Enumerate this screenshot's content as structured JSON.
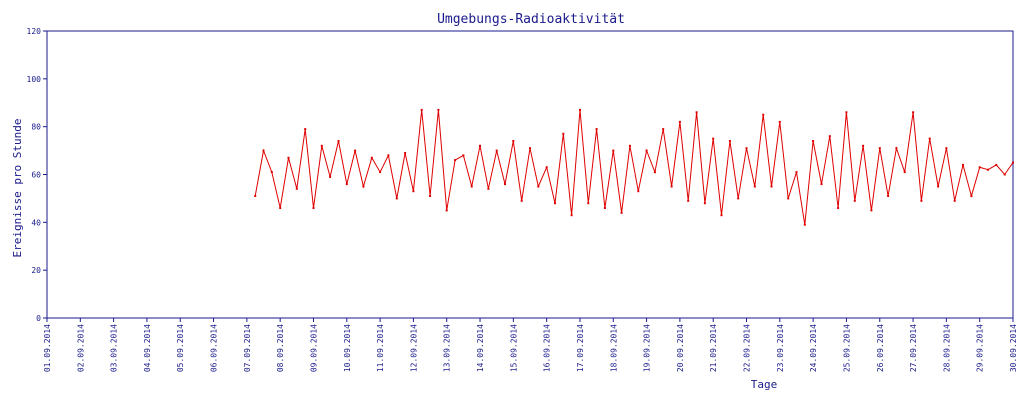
{
  "chart_data": {
    "type": "line",
    "title": "Umgebungs-Radioaktivität",
    "xlabel": "Tage",
    "ylabel": "Ereignisse pro Stunde",
    "ylim": [
      0,
      120
    ],
    "yticks": [
      0,
      20,
      40,
      60,
      80,
      100,
      120
    ],
    "xlim": [
      "01.09.2014",
      "30.09.2014"
    ],
    "x_tick_labels": [
      "01.09.2014",
      "02.09.2014",
      "03.09.2014",
      "04.09.2014",
      "05.09.2014",
      "06.09.2014",
      "07.09.2014",
      "08.09.2014",
      "09.09.2014",
      "10.09.2014",
      "11.09.2014",
      "12.09.2014",
      "13.09.2014",
      "14.09.2014",
      "15.09.2014",
      "16.09.2014",
      "17.09.2014",
      "18.09.2014",
      "19.09.2014",
      "20.09.2014",
      "21.09.2014",
      "22.09.2014",
      "23.09.2014",
      "24.09.2014",
      "25.09.2014",
      "26.09.2014",
      "27.09.2014",
      "28.09.2014",
      "29.09.2014",
      "30.09.2014"
    ],
    "grid": false,
    "legend": "none",
    "colors": {
      "series": "#e00000",
      "axis": "#1a1a8c"
    },
    "series": [
      {
        "x": [
          "07.09.2014 06:00",
          "07.09.2014 12:00",
          "07.09.2014 18:00",
          "08.09.2014 00:00",
          "08.09.2014 06:00",
          "08.09.2014 12:00",
          "08.09.2014 18:00",
          "09.09.2014 00:00",
          "09.09.2014 06:00",
          "09.09.2014 12:00",
          "09.09.2014 18:00",
          "10.09.2014 00:00",
          "10.09.2014 06:00",
          "10.09.2014 12:00",
          "10.09.2014 18:00",
          "11.09.2014 00:00",
          "11.09.2014 06:00",
          "11.09.2014 12:00",
          "11.09.2014 18:00",
          "12.09.2014 00:00",
          "12.09.2014 06:00",
          "12.09.2014 12:00",
          "12.09.2014 18:00",
          "13.09.2014 00:00",
          "13.09.2014 06:00",
          "13.09.2014 12:00",
          "13.09.2014 18:00",
          "14.09.2014 00:00",
          "14.09.2014 06:00",
          "14.09.2014 12:00",
          "14.09.2014 18:00",
          "15.09.2014 00:00",
          "15.09.2014 06:00",
          "15.09.2014 12:00",
          "15.09.2014 18:00",
          "16.09.2014 00:00",
          "16.09.2014 06:00",
          "16.09.2014 12:00",
          "16.09.2014 18:00",
          "17.09.2014 00:00",
          "17.09.2014 06:00",
          "17.09.2014 12:00",
          "17.09.2014 18:00",
          "18.09.2014 00:00",
          "18.09.2014 06:00",
          "18.09.2014 12:00",
          "18.09.2014 18:00",
          "19.09.2014 00:00",
          "19.09.2014 06:00",
          "19.09.2014 12:00",
          "19.09.2014 18:00",
          "20.09.2014 00:00",
          "20.09.2014 06:00",
          "20.09.2014 12:00",
          "20.09.2014 18:00",
          "21.09.2014 00:00",
          "21.09.2014 06:00",
          "21.09.2014 12:00",
          "21.09.2014 18:00",
          "22.09.2014 00:00",
          "22.09.2014 06:00",
          "22.09.2014 12:00",
          "22.09.2014 18:00",
          "23.09.2014 00:00",
          "23.09.2014 06:00",
          "23.09.2014 12:00",
          "23.09.2014 18:00",
          "24.09.2014 00:00",
          "24.09.2014 06:00",
          "24.09.2014 12:00",
          "24.09.2014 18:00",
          "25.09.2014 00:00",
          "25.09.2014 06:00",
          "25.09.2014 12:00",
          "25.09.2014 18:00",
          "26.09.2014 00:00",
          "26.09.2014 06:00",
          "26.09.2014 12:00",
          "26.09.2014 18:00",
          "27.09.2014 00:00",
          "27.09.2014 06:00",
          "27.09.2014 12:00",
          "27.09.2014 18:00",
          "28.09.2014 00:00",
          "28.09.2014 06:00",
          "28.09.2014 12:00",
          "28.09.2014 18:00",
          "29.09.2014 00:00",
          "29.09.2014 06:00",
          "29.09.2014 12:00",
          "29.09.2014 18:00",
          "30.09.2014 00:00"
        ],
        "values": [
          51,
          70,
          61,
          46,
          67,
          54,
          79,
          46,
          72,
          59,
          74,
          56,
          70,
          55,
          67,
          61,
          68,
          50,
          69,
          53,
          87,
          51,
          87,
          45,
          66,
          68,
          55,
          72,
          54,
          70,
          56,
          74,
          49,
          71,
          55,
          63,
          48,
          77,
          43,
          87,
          48,
          79,
          46,
          70,
          44,
          72,
          53,
          70,
          61,
          79,
          55,
          82,
          49,
          86,
          48,
          75,
          43,
          74,
          50,
          71,
          55,
          85,
          55,
          82,
          50,
          61,
          39,
          74,
          56,
          76,
          46,
          86,
          49,
          72,
          45,
          71,
          51,
          71,
          61,
          86,
          49,
          75,
          55,
          71,
          49,
          64,
          51,
          63,
          62,
          64,
          60,
          65
        ]
      }
    ]
  }
}
